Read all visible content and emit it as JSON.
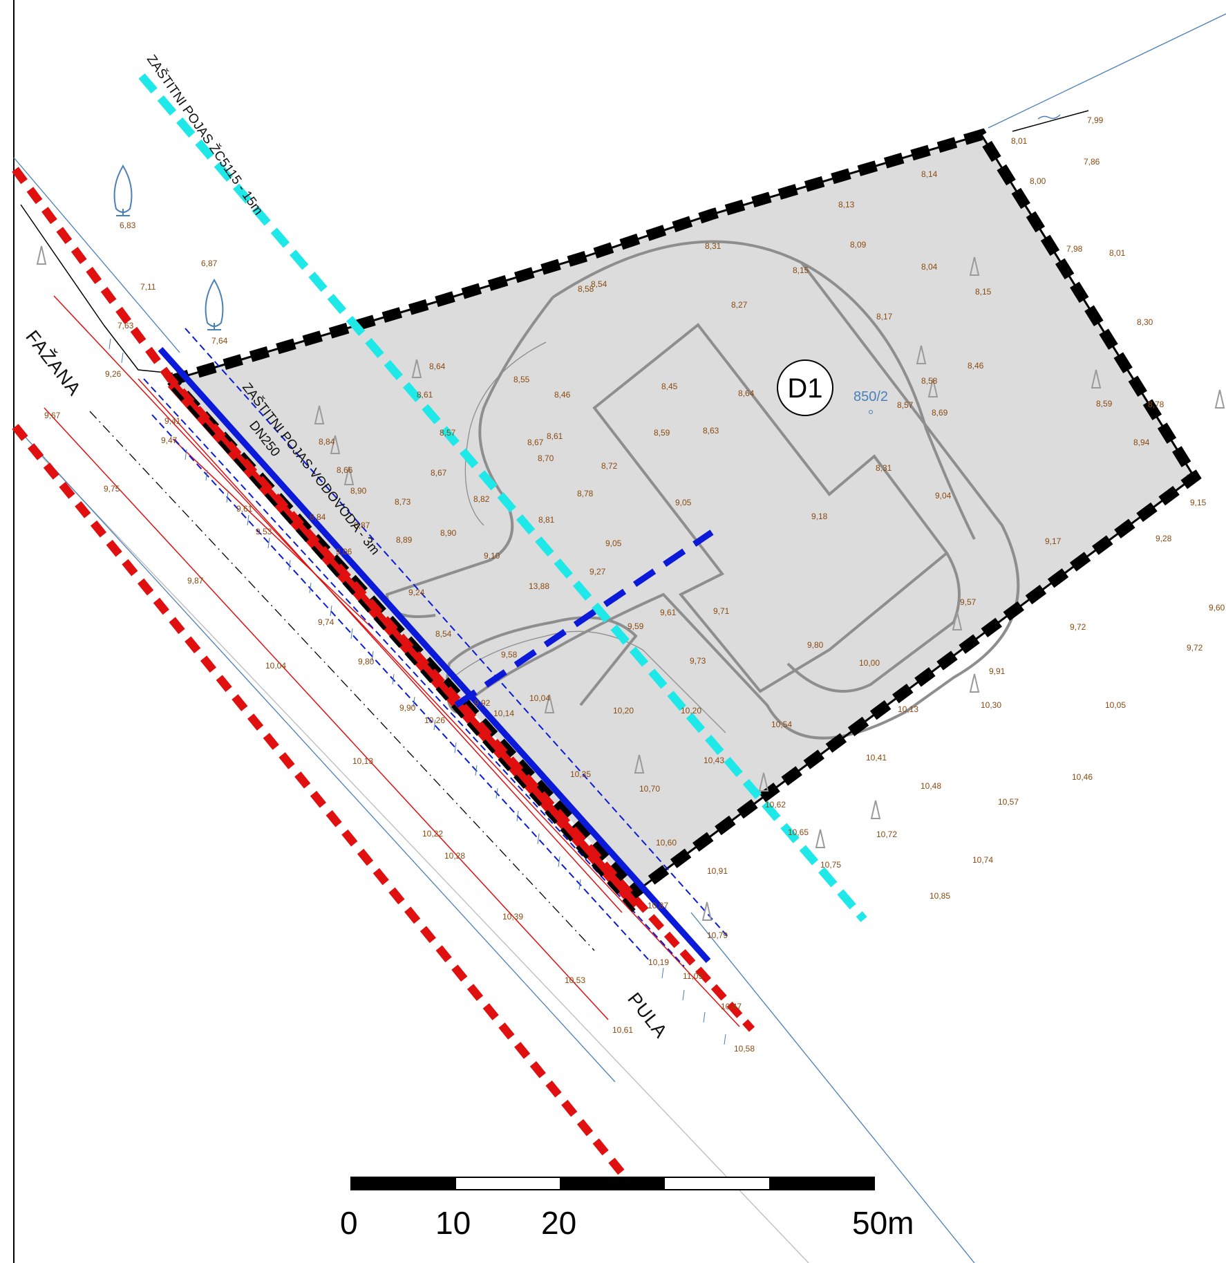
{
  "labels": {
    "road_west": "FAŽANA",
    "road_east": "PULA",
    "buffer_zc": "ZAŠTITNI POJAS ŽC5115 - 15m",
    "buffer_water": "ZAŠTITNI POJAS VODOVODA - 3m",
    "pipe": "DN250",
    "zone": "D1",
    "parcel": "850/2"
  },
  "scale_bar": {
    "ticks": [
      "0",
      "10",
      "20",
      "50m"
    ]
  },
  "elevations": [
    "7,99",
    "8,01",
    "7,86",
    "8,00",
    "8,14",
    "8,13",
    "7,98",
    "8,01",
    "8,09",
    "8,04",
    "8,15",
    "8,15",
    "8,31",
    "8,54",
    "8,58",
    "8,27",
    "8,17",
    "8,30",
    "8,64",
    "8,61",
    "8,55",
    "8,46",
    "8,45",
    "8,64",
    "8,58",
    "8,46",
    "8,57",
    "8,69",
    "8,59",
    "8,78",
    "8,57",
    "8,67",
    "8,61",
    "8,59",
    "8,63",
    "8,94",
    "8,84",
    "8,66",
    "8,70",
    "8,72",
    "8,31",
    "8,67",
    "8,90",
    "8,73",
    "8,78",
    "8,82",
    "9,05",
    "9,04",
    "9,15",
    "8,84",
    "8,81",
    "9,18",
    "8,87",
    "8,89",
    "8,90",
    "9,05",
    "9,17",
    "9,28",
    "9,06",
    "9,10",
    "9,27",
    "13,88",
    "9,24",
    "9,57",
    "9,60",
    "8,54",
    "9,59",
    "9,61",
    "9,71",
    "9,72",
    "9,80",
    "9,58",
    "9,73",
    "10,00",
    "9,72",
    "9,91",
    "9,92",
    "10,04",
    "10,14",
    "10,20",
    "10,20",
    "10,54",
    "10,13",
    "10,30",
    "10,05",
    "10,43",
    "10,41",
    "10,35",
    "10,46",
    "10,70",
    "10,48",
    "10,62",
    "10,57",
    "10,65",
    "10,72",
    "10,60",
    "10,75",
    "10,74",
    "10,91",
    "10,85",
    "10,87",
    "10,79",
    "10,19",
    "11,09",
    "10,47",
    "10,58",
    "10,61",
    "10,53",
    "10,39",
    "10,28",
    "10,22",
    "10,13",
    "10,04",
    "9,87",
    "9,75",
    "9,67",
    "9,26",
    "9,41",
    "9,47",
    "9,61",
    "9,53",
    "9,74",
    "9,80",
    "9,90",
    "10,26",
    "6,83",
    "6,87",
    "7,11",
    "7,64",
    "7,63"
  ],
  "colors": {
    "buffer_zc": "#1ee8e8",
    "road_edge": "#e01010",
    "water_pipe": "#0a1ad8",
    "plot_boundary": "#000000",
    "plot_fill": "#dcdcdc",
    "elevation_text": "#8a4a10",
    "parcel_text": "#4a7fb8"
  }
}
